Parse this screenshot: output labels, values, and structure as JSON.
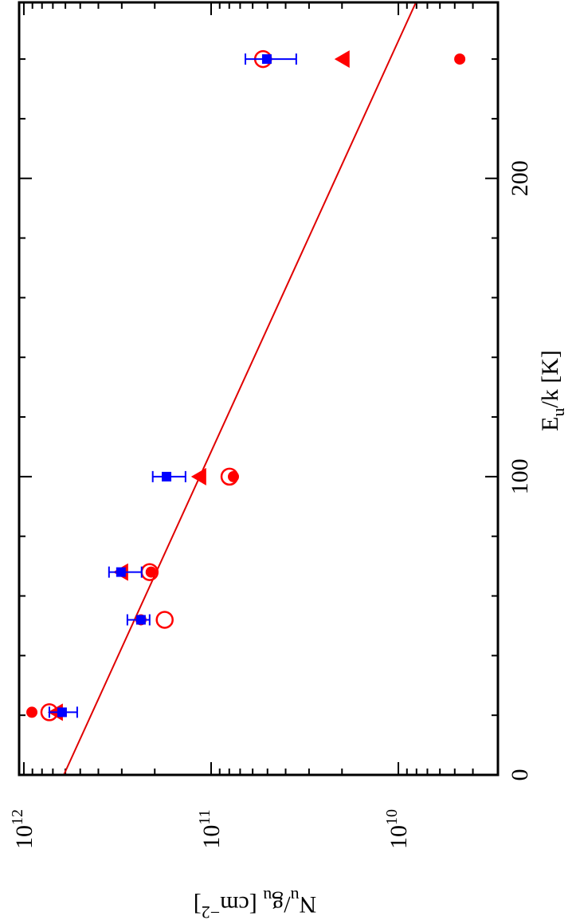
{
  "chart_data": {
    "type": "scatter",
    "xlabel": [
      "E",
      "u",
      "/k [K]"
    ],
    "ylabel": [
      "N",
      "u",
      "/g",
      "u",
      " [cm",
      "−2",
      "]"
    ],
    "xlim": [
      0,
      259
    ],
    "xticks": [
      0,
      100,
      200
    ],
    "xminorticks": [
      20,
      40,
      60,
      80,
      120,
      140,
      160,
      180,
      220,
      240
    ],
    "ylim": [
      2940000000.0,
      1060000000000.0
    ],
    "log_y": true,
    "yticks": [
      {
        "value": 10000000000.0,
        "label": "10",
        "exponent": "10"
      },
      {
        "value": 100000000000.0,
        "label": "10",
        "exponent": "11"
      },
      {
        "value": 1000000000000.0,
        "label": "10",
        "exponent": "12"
      }
    ],
    "yminorticks": [
      4000000000.0,
      5000000000.0,
      6000000000.0,
      7000000000.0,
      8000000000.0,
      9000000000.0,
      20000000000.0,
      30000000000.0,
      40000000000.0,
      50000000000.0,
      60000000000.0,
      70000000000.0,
      80000000000.0,
      90000000000.0,
      200000000000.0,
      300000000000.0,
      400000000000.0,
      500000000000.0,
      600000000000.0,
      700000000000.0,
      800000000000.0,
      900000000000.0
    ],
    "x": [
      21,
      52,
      68,
      100,
      240
    ],
    "series": [
      {
        "marker": "filled-circle",
        "color": "#ff0000",
        "values": [
          906000000000.0,
          237000000000.0,
          209000000000.0,
          76000000000.0,
          4700000000.0
        ]
      },
      {
        "marker": "open-circle",
        "color": "#ff0000",
        "values": [
          731000000000.0,
          177000000000.0,
          213000000000.0,
          79800000000.0,
          52800000000.0
        ]
      },
      {
        "marker": "triangle",
        "color": "#ff0000",
        "values": [
          676000000000.0,
          null,
          303000000000.0,
          116000000000.0,
          19900000000.0
        ]
      },
      {
        "marker": "square",
        "color": "#0000ff",
        "values": [
          625000000000.0,
          237000000000.0,
          303000000000.0,
          173000000000.0,
          50400000000.0
        ],
        "lower": [
          519000000000.0,
          213000000000.0,
          235000000000.0,
          137000000000.0,
          35100000000.0
        ],
        "upper": [
          731000000000.0,
          280000000000.0,
          351000000000.0,
          205000000000.0,
          65600000000.0
        ]
      }
    ],
    "fit": {
      "color": "#e00000",
      "x": [
        0,
        259
      ],
      "values": [
        612000000000.0,
        8060000000.0
      ]
    }
  }
}
